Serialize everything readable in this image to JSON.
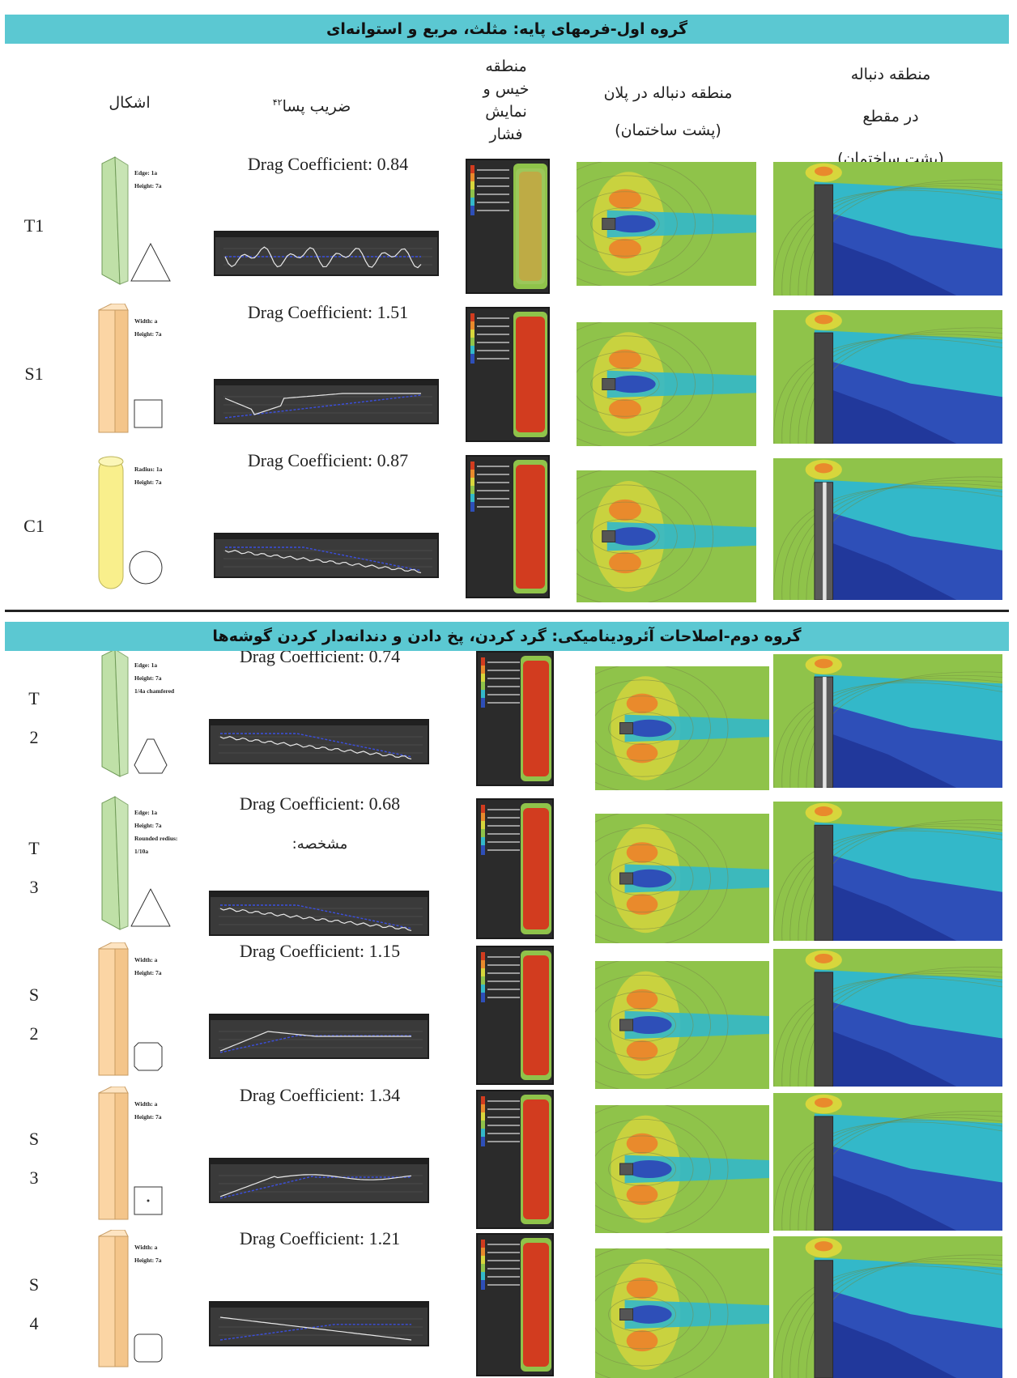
{
  "group1_title": "گروه اول-فرمهای پایه: مثلث، مربع و استوانه‌ای",
  "group2_title": "گروه دوم-اصلاحات آئرودینامیکی: گرد کردن، پخ دادن و دندانه‌دار کردن گوشه‌ها",
  "headers": {
    "shapes": "اشکال",
    "drag": "ضریب پسا",
    "drag_ref": "۴۲",
    "pressure": [
      "منطقه",
      "خیس و",
      "نمایش",
      "فشار"
    ],
    "wake_plan": [
      "منطقه دنباله در پلان",
      "(پشت ساختمان)"
    ],
    "wake_section": [
      "منطقه دنباله",
      "در مقطع",
      "(پشت ساختمان)"
    ]
  },
  "rows": [
    {
      "label": [
        "T1"
      ],
      "drag": "Drag Coefficient: 0.84",
      "shape": "triangle",
      "color": "#bfe0a7",
      "dims": [
        "Edge: 1a",
        "Height: 7a"
      ],
      "extra": ""
    },
    {
      "label": [
        "S1"
      ],
      "drag": "Drag Coefficient: 1.51",
      "shape": "square",
      "color": "#fbd5a4",
      "dims": [
        "Width: a",
        "Height: 7a"
      ],
      "extra": ""
    },
    {
      "label": [
        "C1"
      ],
      "drag": "Drag Coefficient: 0.87",
      "shape": "circle",
      "color": "#f9ef8c",
      "dims": [
        "Radius: 1a",
        "Height: 7a"
      ],
      "extra": ""
    },
    {
      "label": [
        "T",
        "2"
      ],
      "drag": "Drag Coefficient: 0.74",
      "shape": "triangle-chamfer",
      "color": "#bfe0a7",
      "dims": [
        "Edge: 1a",
        "Height: 7a",
        "1/4a chamfered"
      ],
      "extra": ""
    },
    {
      "label": [
        "T",
        "3"
      ],
      "drag": "Drag Coefficient: 0.68",
      "shape": "triangle-round",
      "color": "#bfe0a7",
      "dims": [
        "Edge: 1a",
        "Height: 7a",
        "Rounded redius:",
        "1/10a"
      ],
      "extra": "مشخصه:"
    },
    {
      "label": [
        "S",
        "2"
      ],
      "drag": "Drag Coefficient: 1.15",
      "shape": "square-chamfer",
      "color": "#fbd5a4",
      "dims": [
        "Width: a",
        "Height: 7a"
      ],
      "extra": ""
    },
    {
      "label": [
        "S",
        "3"
      ],
      "drag": "Drag Coefficient: 1.34",
      "shape": "square-notch",
      "color": "#fbd5a4",
      "dims": [
        "Width: a",
        "Height: 7a"
      ],
      "extra": ""
    },
    {
      "label": [
        "S",
        "4"
      ],
      "drag": "Drag Coefficient: 1.21",
      "shape": "square-round",
      "color": "#fbd5a4",
      "dims": [
        "Width: a",
        "Height: 7a"
      ],
      "extra": ""
    }
  ],
  "colors": {
    "header_band": "#5bc8d2",
    "field_green": "#8fc34a",
    "field_yellow": "#d7d63c",
    "field_orange": "#e98a2c",
    "field_red": "#d23c1f",
    "field_cyan": "#33b8c9",
    "field_blue": "#2e4fb8",
    "field_navy": "#1c2f8f",
    "curve_white": "#e8e8e8",
    "curve_blue": "#3b4fe0"
  }
}
